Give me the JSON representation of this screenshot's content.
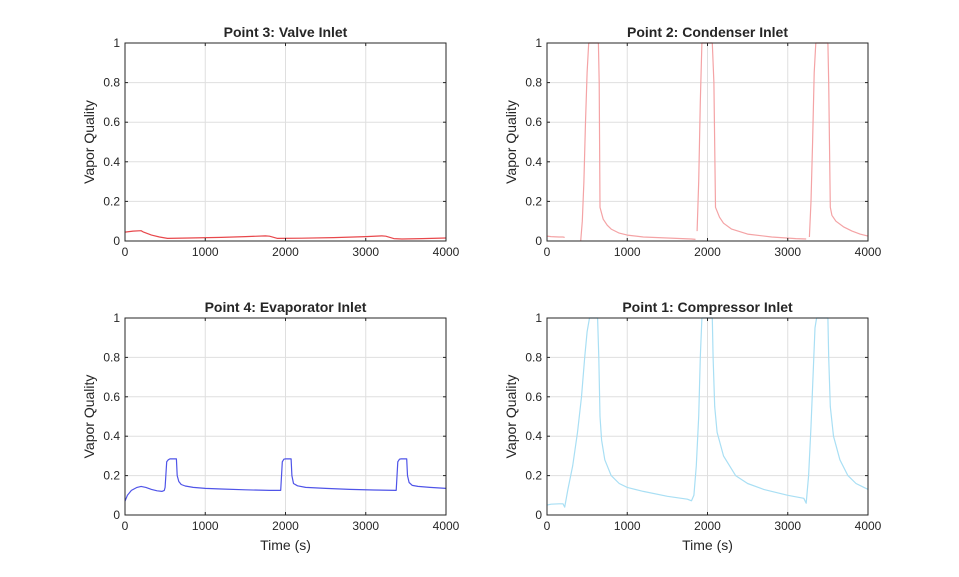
{
  "chart_data": [
    {
      "type": "line",
      "title": "Point 3: Valve Inlet",
      "xlabel": "",
      "ylabel": "Vapor Quality",
      "xlim": [
        0,
        4000
      ],
      "ylim": [
        0,
        1
      ],
      "xticks": [
        "0",
        "1000",
        "2000",
        "3000",
        "4000"
      ],
      "yticks": [
        "0",
        "0.2",
        "0.4",
        "0.6",
        "0.8",
        "1"
      ],
      "grid": true,
      "color": "#e8484c",
      "series": [
        {
          "x": [
            0,
            100,
            200,
            230,
            330,
            430,
            530,
            800,
            1200,
            1500,
            1750,
            1800,
            1900,
            2200,
            2600,
            3000,
            3200,
            3250,
            3350,
            3450,
            3700,
            4000
          ],
          "values": [
            0.045,
            0.05,
            0.052,
            0.045,
            0.03,
            0.02,
            0.013,
            0.015,
            0.018,
            0.022,
            0.026,
            0.024,
            0.013,
            0.014,
            0.017,
            0.022,
            0.026,
            0.024,
            0.012,
            0.01,
            0.012,
            0.015
          ]
        }
      ]
    },
    {
      "type": "line",
      "title": "Point 2: Condenser Inlet",
      "xlabel": "",
      "ylabel": "Vapor Quality",
      "xlim": [
        0,
        4000
      ],
      "ylim": [
        0,
        1
      ],
      "xticks": [
        "0",
        "1000",
        "2000",
        "3000",
        "4000"
      ],
      "yticks": [
        "0",
        "0.2",
        "0.4",
        "0.6",
        "0.8",
        "1"
      ],
      "grid": true,
      "color": "#f4a3a5",
      "series": [
        {
          "x": [
            0,
            50,
            150,
            200,
            220
          ],
          "values": [
            0.025,
            0.022,
            0.02,
            0.02,
            0.018
          ]
        },
        {
          "x": [
            420,
            440,
            460,
            480,
            500,
            520,
            540,
            560,
            640,
            650,
            660,
            680,
            700,
            750,
            800,
            900,
            1000,
            1200,
            1500,
            1800,
            1850
          ],
          "values": [
            0.0,
            0.1,
            0.3,
            0.6,
            0.85,
            1.0,
            1.0,
            1.0,
            1.0,
            0.8,
            0.17,
            0.14,
            0.11,
            0.08,
            0.06,
            0.04,
            0.03,
            0.02,
            0.015,
            0.01,
            0.008
          ]
        },
        {
          "x": [
            1870,
            1890,
            1910,
            1930,
            1950,
            1970,
            2030,
            2060,
            2080,
            2100,
            2150,
            2200,
            2300,
            2500,
            2800,
            3100,
            3230
          ],
          "values": [
            0.05,
            0.3,
            0.7,
            1.0,
            1.0,
            1.0,
            1.0,
            1.0,
            0.8,
            0.17,
            0.12,
            0.09,
            0.06,
            0.035,
            0.02,
            0.012,
            0.01
          ]
        },
        {
          "x": [
            3270,
            3290,
            3310,
            3330,
            3350,
            3380,
            3400,
            3500,
            3510,
            3530,
            3550,
            3600,
            3700,
            3800,
            3900,
            4000
          ],
          "values": [
            0.02,
            0.2,
            0.5,
            0.85,
            1.0,
            1.0,
            1.0,
            1.0,
            0.8,
            0.17,
            0.13,
            0.1,
            0.07,
            0.05,
            0.035,
            0.025
          ]
        }
      ]
    },
    {
      "type": "line",
      "title": "Point 4: Evaporator Inlet",
      "xlabel": "Time (s)",
      "ylabel": "Vapor Quality",
      "xlim": [
        0,
        4000
      ],
      "ylim": [
        0,
        1
      ],
      "xticks": [
        "0",
        "1000",
        "2000",
        "3000",
        "4000"
      ],
      "yticks": [
        "0",
        "0.2",
        "0.4",
        "0.6",
        "0.8",
        "1"
      ],
      "grid": true,
      "color": "#4f54e8",
      "series": [
        {
          "x": [
            0,
            30,
            80,
            150,
            200,
            260,
            330,
            400,
            460,
            490,
            500,
            520,
            540,
            560,
            640,
            650,
            670,
            700,
            750,
            850,
            1000,
            1200,
            1500,
            1800,
            1940,
            1960,
            1980,
            2000,
            2070,
            2080,
            2100,
            2150,
            2250,
            2500,
            2800,
            3100,
            3380,
            3400,
            3420,
            3440,
            3510,
            3520,
            3540,
            3580,
            3650,
            3800,
            4000
          ],
          "values": [
            0.07,
            0.1,
            0.125,
            0.14,
            0.145,
            0.14,
            0.13,
            0.123,
            0.12,
            0.125,
            0.14,
            0.27,
            0.28,
            0.285,
            0.285,
            0.2,
            0.17,
            0.155,
            0.147,
            0.14,
            0.135,
            0.132,
            0.128,
            0.125,
            0.125,
            0.27,
            0.283,
            0.285,
            0.285,
            0.2,
            0.16,
            0.148,
            0.14,
            0.135,
            0.13,
            0.127,
            0.125,
            0.27,
            0.283,
            0.285,
            0.285,
            0.2,
            0.165,
            0.15,
            0.145,
            0.14,
            0.135
          ]
        }
      ]
    },
    {
      "type": "line",
      "title": "Point 1: Compressor Inlet",
      "xlabel": "Time (s)",
      "ylabel": "Vapor Quality",
      "xlim": [
        0,
        4000
      ],
      "ylim": [
        0,
        1
      ],
      "xticks": [
        "0",
        "1000",
        "2000",
        "3000",
        "4000"
      ],
      "yticks": [
        "0",
        "0.2",
        "0.4",
        "0.6",
        "0.8",
        "1"
      ],
      "grid": true,
      "color": "#a9dff4",
      "series": [
        {
          "x": [
            0,
            50,
            150,
            200,
            220,
            260,
            320,
            380,
            430,
            470,
            500,
            530,
            560,
            630,
            645,
            660,
            680,
            720,
            800,
            900,
            1000,
            1200,
            1500,
            1750,
            1800,
            1830,
            1860,
            1890,
            1910,
            1930,
            1940,
            1960,
            2060,
            2070,
            2090,
            2120,
            2200,
            2350,
            2500,
            2700,
            3000,
            3200,
            3230,
            3260,
            3290,
            3320,
            3340,
            3360,
            3380,
            3500,
            3510,
            3530,
            3570,
            3650,
            3750,
            3850,
            3950,
            4000
          ],
          "values": [
            0.05,
            0.055,
            0.057,
            0.057,
            0.04,
            0.13,
            0.25,
            0.42,
            0.6,
            0.8,
            0.93,
            1.0,
            1.0,
            1.0,
            0.8,
            0.5,
            0.38,
            0.28,
            0.2,
            0.16,
            0.14,
            0.12,
            0.095,
            0.08,
            0.072,
            0.1,
            0.25,
            0.5,
            0.8,
            1.0,
            1.0,
            1.0,
            1.0,
            0.8,
            0.55,
            0.42,
            0.3,
            0.2,
            0.16,
            0.13,
            0.1,
            0.085,
            0.06,
            0.2,
            0.45,
            0.75,
            0.95,
            1.0,
            1.0,
            1.0,
            0.8,
            0.55,
            0.4,
            0.28,
            0.2,
            0.16,
            0.14,
            0.13
          ]
        }
      ]
    }
  ]
}
